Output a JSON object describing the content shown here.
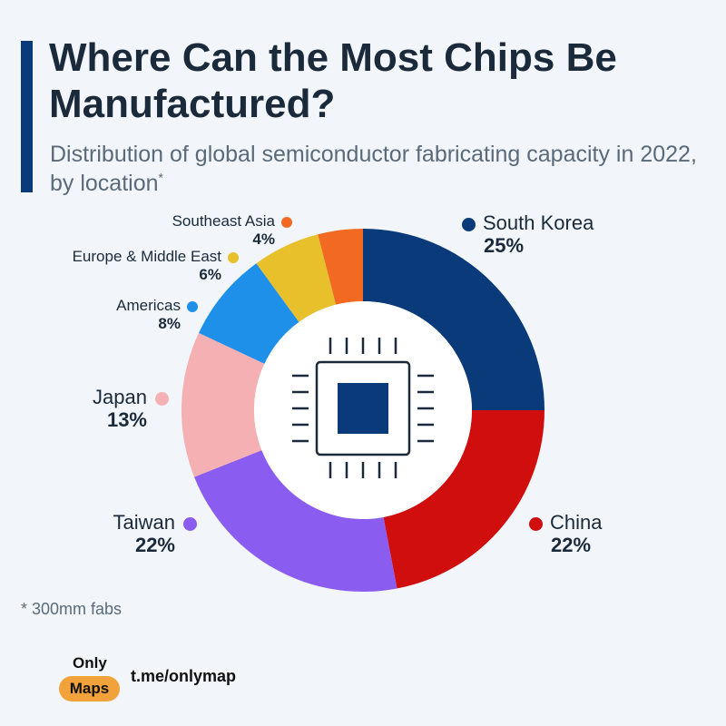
{
  "header": {
    "title": "Where Can the Most Chips Be Manufactured?",
    "subtitle": "Distribution of global semiconductor fabricating capacity in 2022, by location",
    "subtitle_marker": "*"
  },
  "chart_data": {
    "type": "pie",
    "variant": "donut",
    "title": "Where Can the Most Chips Be Manufactured?",
    "subtitle": "Distribution of global semiconductor fabricating capacity in 2022, by location*",
    "unit": "%",
    "start": "12 o'clock, clockwise",
    "center_icon": "microchip-icon",
    "slices": [
      {
        "label": "South Korea",
        "value": 25,
        "value_label": "25%",
        "color": "#0a3a7a"
      },
      {
        "label": "China",
        "value": 22,
        "value_label": "22%",
        "color": "#d10e0e"
      },
      {
        "label": "Taiwan",
        "value": 22,
        "value_label": "22%",
        "color": "#8b5cf0"
      },
      {
        "label": "Japan",
        "value": 13,
        "value_label": "13%",
        "color": "#f4b0b3"
      },
      {
        "label": "Americas",
        "value": 8,
        "value_label": "8%",
        "color": "#1e90ea"
      },
      {
        "label": "Europe & Middle East",
        "value": 6,
        "value_label": "6%",
        "color": "#e8c02c"
      },
      {
        "label": "Southeast Asia",
        "value": 4,
        "value_label": "4%",
        "color": "#f26a22"
      }
    ]
  },
  "footnote": "* 300mm fabs",
  "brand": {
    "top": "Only",
    "pill": "Maps",
    "link": "t.me/onlymap",
    "pill_color": "#f2a23a"
  }
}
